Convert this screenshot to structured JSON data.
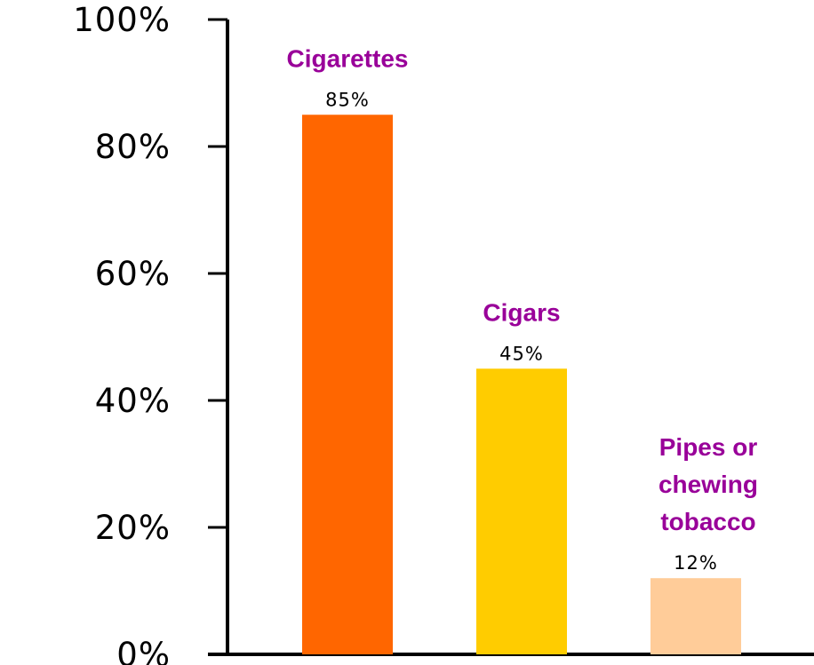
{
  "chart_data": {
    "type": "bar",
    "title": "",
    "xlabel": "",
    "ylabel": "",
    "ylim": [
      0,
      100
    ],
    "y_ticks": [
      {
        "value": 0,
        "label": "0%"
      },
      {
        "value": 20,
        "label": "20%"
      },
      {
        "value": 40,
        "label": "40%"
      },
      {
        "value": 60,
        "label": "60%"
      },
      {
        "value": 80,
        "label": "80%"
      },
      {
        "value": 100,
        "label": "100%"
      }
    ],
    "categories": [
      {
        "label_lines": [
          "Cigarettes"
        ],
        "value": 85,
        "value_label": "85%",
        "color": "#ff6600"
      },
      {
        "label_lines": [
          "Cigars"
        ],
        "value": 45,
        "value_label": "45%",
        "color": "#ffcc00"
      },
      {
        "label_lines": [
          "Pipes or",
          "chewing",
          "tobacco"
        ],
        "value": 12,
        "value_label": "12%",
        "color": "#ffcc99"
      }
    ],
    "label_color": "#990099",
    "axis_color": "#000000",
    "grid": false,
    "legend": "none"
  }
}
